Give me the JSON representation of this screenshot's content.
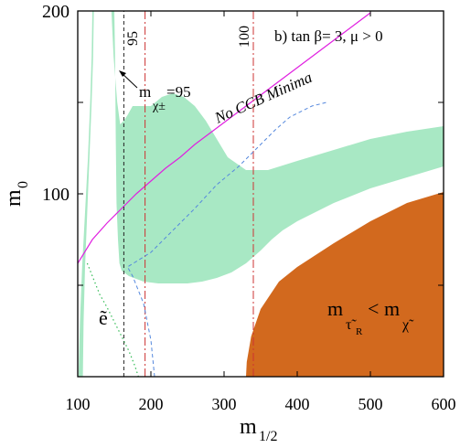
{
  "chart_data": {
    "type": "area",
    "panel_label": "b) tan β= 3,  μ > 0",
    "xlabel": {
      "main": "m",
      "sub": "1/2"
    },
    "ylabel": {
      "main": "m",
      "sub": "0"
    },
    "xlim": [
      100,
      600
    ],
    "ylim": [
      0,
      200
    ],
    "x_ticks": [
      100,
      200,
      300,
      400,
      500,
      600
    ],
    "y_ticks": [
      100,
      200
    ],
    "y_tick_labels_shown": [
      100,
      200
    ],
    "colors": {
      "allowed_region": "#a8e8c4",
      "stau_lsp_region": "#d2691e",
      "ccb_line": "#e020e0",
      "dashed_blue": "#5588dd",
      "dotted_green": "#33bb55",
      "dashdot_red": "#cc3333",
      "dashed_black": "#222222"
    },
    "regions": [
      {
        "name": "cosmologically allowed (green)",
        "left_strip": [
          [
            101,
            0
          ],
          [
            103,
            30
          ],
          [
            106,
            60
          ],
          [
            110,
            90
          ],
          [
            114,
            120
          ],
          [
            117,
            150
          ],
          [
            119,
            175
          ],
          [
            120,
            200
          ],
          [
            122,
            200
          ],
          [
            121,
            175
          ],
          [
            119,
            150
          ],
          [
            116,
            120
          ],
          [
            113,
            90
          ],
          [
            110,
            60
          ],
          [
            108,
            30
          ],
          [
            107,
            0
          ]
        ],
        "band": [
          [
            146,
            200
          ],
          [
            149,
            175
          ],
          [
            154,
            150
          ],
          [
            158,
            138
          ],
          [
            163,
            140
          ],
          [
            168,
            143
          ],
          [
            175,
            148
          ],
          [
            185,
            148
          ],
          [
            200,
            148
          ],
          [
            215,
            153
          ],
          [
            230,
            155
          ],
          [
            245,
            153
          ],
          [
            260,
            148
          ],
          [
            275,
            140
          ],
          [
            290,
            130
          ],
          [
            305,
            120
          ],
          [
            330,
            113
          ],
          [
            360,
            113
          ],
          [
            400,
            118
          ],
          [
            450,
            124
          ],
          [
            500,
            130
          ],
          [
            550,
            134
          ],
          [
            600,
            137
          ],
          [
            600,
            115
          ],
          [
            550,
            109
          ],
          [
            500,
            103
          ],
          [
            450,
            95
          ],
          [
            400,
            85
          ],
          [
            380,
            80
          ],
          [
            365,
            75
          ],
          [
            350,
            69
          ],
          [
            330,
            62
          ],
          [
            310,
            57
          ],
          [
            290,
            54
          ],
          [
            270,
            52
          ],
          [
            250,
            51
          ],
          [
            230,
            51
          ],
          [
            210,
            51
          ],
          [
            190,
            52
          ],
          [
            170,
            55
          ],
          [
            160,
            58
          ],
          [
            157,
            62
          ],
          [
            155,
            75
          ],
          [
            153,
            95
          ],
          [
            152,
            130
          ],
          [
            151,
            175
          ],
          [
            150,
            200
          ]
        ]
      },
      {
        "name": "stau LSP excluded (brown)",
        "label_main": "m",
        "label_sub1": "τ̃",
        "label_sub2": "R",
        "label_lt": "<",
        "label_main2": "m",
        "label_sub3": "χ̃",
        "boundary": [
          [
            330,
            0
          ],
          [
            331,
            8
          ],
          [
            337,
            22
          ],
          [
            350,
            37
          ],
          [
            375,
            52
          ],
          [
            400,
            60
          ],
          [
            450,
            73
          ],
          [
            500,
            85
          ],
          [
            550,
            95
          ],
          [
            600,
            101
          ],
          [
            600,
            0
          ]
        ]
      }
    ],
    "lines": [
      {
        "name": "No CCB Minima",
        "label": "No CCB Minima",
        "style": "solid",
        "points": [
          [
            100,
            62
          ],
          [
            120,
            75
          ],
          [
            140,
            84
          ],
          [
            160,
            92
          ],
          [
            180,
            100
          ],
          [
            200,
            107
          ],
          [
            220,
            114
          ],
          [
            240,
            120
          ],
          [
            260,
            127
          ],
          [
            280,
            133
          ],
          [
            300,
            139
          ],
          [
            320,
            145
          ],
          [
            340,
            151
          ],
          [
            360,
            157
          ],
          [
            380,
            163
          ],
          [
            400,
            169
          ],
          [
            420,
            175
          ],
          [
            440,
            181
          ],
          [
            460,
            187
          ],
          [
            480,
            193
          ],
          [
            500,
            199
          ]
        ]
      },
      {
        "name": "chargino mass 95",
        "label_main": "m",
        "label_sub": "χ±",
        "label_rest": "=95",
        "style": "dashed-black",
        "points": [
          [
            163,
            0
          ],
          [
            163,
            200
          ]
        ]
      },
      {
        "name": "Higgs 95",
        "label": "95",
        "style": "dashdot",
        "points": [
          [
            192,
            0
          ],
          [
            192,
            200
          ]
        ]
      },
      {
        "name": "Higgs 100",
        "label": "100",
        "style": "dashdot",
        "points": [
          [
            340,
            0
          ],
          [
            340,
            200
          ]
        ]
      },
      {
        "name": "blue dashed boundary",
        "style": "dashed-blue",
        "points": [
          [
            205,
            0
          ],
          [
            200,
            20
          ],
          [
            190,
            40
          ],
          [
            175,
            55
          ],
          [
            168,
            60
          ],
          [
            176,
            62
          ],
          [
            200,
            68
          ],
          [
            230,
            80
          ],
          [
            260,
            92
          ],
          [
            290,
            105
          ],
          [
            320,
            115
          ],
          [
            350,
            127
          ],
          [
            370,
            135
          ],
          [
            390,
            142
          ],
          [
            420,
            148
          ],
          [
            440,
            150
          ]
        ]
      },
      {
        "name": "green dotted boundary",
        "style": "dotted-green",
        "points": [
          [
            113,
            62
          ],
          [
            120,
            55
          ],
          [
            130,
            45
          ],
          [
            140,
            38
          ],
          [
            150,
            30
          ],
          [
            160,
            22
          ],
          [
            170,
            14
          ],
          [
            178,
            6
          ],
          [
            183,
            0
          ]
        ]
      }
    ],
    "annotations": [
      {
        "text": "ẽ",
        "at": [
          128,
          33
        ]
      },
      {
        "text": "95",
        "at": [
          150,
          186
        ]
      },
      {
        "text": "100",
        "at": [
          272,
          184
        ]
      }
    ]
  }
}
